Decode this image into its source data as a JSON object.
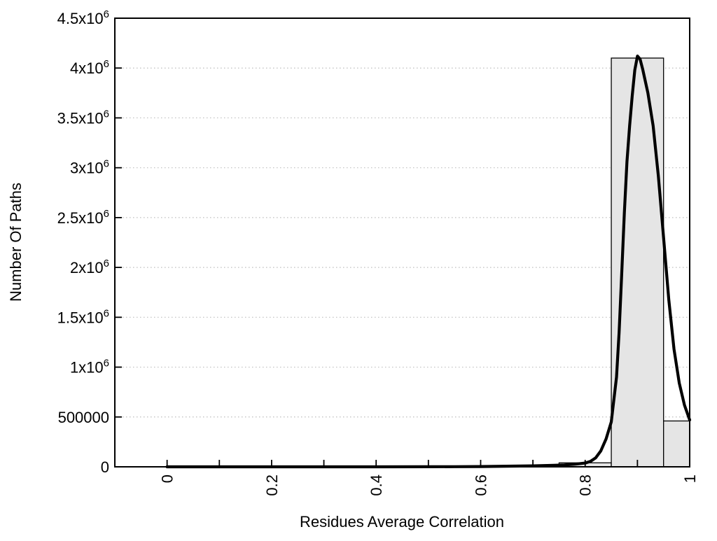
{
  "chart_data": {
    "type": "bar",
    "subtype": "histogram-with-fit-curve",
    "title": "",
    "xlabel": "Residues Average Correlation",
    "ylabel": "Number Of Paths",
    "xlim": [
      -0.1,
      1.0
    ],
    "ylim": [
      0,
      4500000
    ],
    "grid": "horizontal-dotted-at-major-y-ticks",
    "legend": "none",
    "colors": {
      "background": "#ffffff",
      "bar_fill": "#e5e5e5",
      "bar_edge": "#000000",
      "curve": "#000000",
      "gridline": "#bdbdbd",
      "frame": "#000000",
      "text": "#000000"
    },
    "x_ticks": [
      [
        0.0,
        "0"
      ],
      [
        0.1,
        ""
      ],
      [
        0.2,
        "0.2"
      ],
      [
        0.3,
        ""
      ],
      [
        0.4,
        "0.4"
      ],
      [
        0.5,
        ""
      ],
      [
        0.6,
        "0.6"
      ],
      [
        0.7,
        ""
      ],
      [
        0.8,
        "0.8"
      ],
      [
        0.9,
        ""
      ],
      [
        1.0,
        "1"
      ]
    ],
    "y_ticks": [
      [
        0,
        "0",
        ""
      ],
      [
        500000,
        "500000",
        ""
      ],
      [
        1000000,
        "1x10",
        "6"
      ],
      [
        1500000,
        "1.5x10",
        "6"
      ],
      [
        2000000,
        "2x10",
        "6"
      ],
      [
        2500000,
        "2.5x10",
        "6"
      ],
      [
        3000000,
        "3x10",
        "6"
      ],
      [
        3500000,
        "3.5x10",
        "6"
      ],
      [
        4000000,
        "4x10",
        "6"
      ],
      [
        4500000,
        "4.5x10",
        "6"
      ]
    ],
    "bars": [
      {
        "x0": 0.65,
        "x1": 0.75,
        "value": 10000
      },
      {
        "x0": 0.75,
        "x1": 0.85,
        "value": 40000
      },
      {
        "x0": 0.85,
        "x1": 0.95,
        "value": 4100000
      },
      {
        "x0": 0.95,
        "x1": 1.0,
        "value": 460000
      }
    ],
    "curve": {
      "name": "fit-curve",
      "peak_x": 0.9,
      "peak_value": 4120000,
      "points": [
        [
          0.0,
          0
        ],
        [
          0.1,
          0
        ],
        [
          0.2,
          0
        ],
        [
          0.3,
          0
        ],
        [
          0.4,
          0
        ],
        [
          0.5,
          800
        ],
        [
          0.55,
          1500
        ],
        [
          0.6,
          3000
        ],
        [
          0.65,
          6000
        ],
        [
          0.7,
          10000
        ],
        [
          0.74,
          15000
        ],
        [
          0.76,
          19000
        ],
        [
          0.78,
          26000
        ],
        [
          0.8,
          38000
        ],
        [
          0.81,
          55000
        ],
        [
          0.82,
          90000
        ],
        [
          0.83,
          160000
        ],
        [
          0.84,
          280000
        ],
        [
          0.85,
          450000
        ],
        [
          0.86,
          900000
        ],
        [
          0.865,
          1350000
        ],
        [
          0.87,
          1950000
        ],
        [
          0.875,
          2550000
        ],
        [
          0.88,
          3060000
        ],
        [
          0.885,
          3420000
        ],
        [
          0.89,
          3720000
        ],
        [
          0.895,
          3980000
        ],
        [
          0.9,
          4120000
        ],
        [
          0.905,
          4090000
        ],
        [
          0.91,
          3990000
        ],
        [
          0.92,
          3750000
        ],
        [
          0.93,
          3420000
        ],
        [
          0.94,
          2920000
        ],
        [
          0.95,
          2300000
        ],
        [
          0.96,
          1680000
        ],
        [
          0.97,
          1180000
        ],
        [
          0.98,
          840000
        ],
        [
          0.99,
          620000
        ],
        [
          1.0,
          470000
        ]
      ]
    }
  }
}
